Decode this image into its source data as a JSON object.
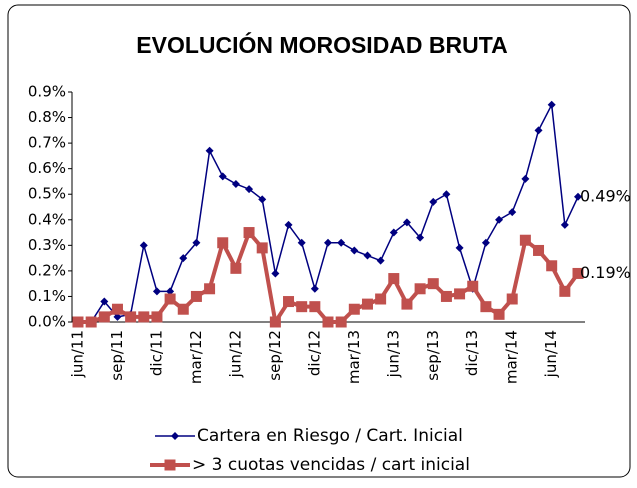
{
  "chart_data": {
    "type": "line",
    "title": "EVOLUCIÓN MOROSIDAD BRUTA",
    "categories": [
      "jun/11",
      null,
      null,
      "sep/11",
      null,
      null,
      "dic/11",
      null,
      null,
      "mar/12",
      null,
      null,
      "jun/12",
      null,
      null,
      "sep/12",
      null,
      null,
      "dic/12",
      null,
      null,
      "mar/13",
      null,
      null,
      "jun/13",
      null,
      null,
      "sep/13",
      null,
      null,
      "dic/13",
      null,
      null,
      "mar/14",
      null,
      null,
      "jun/14",
      null,
      null
    ],
    "series": [
      {
        "name": "Cartera en Riesgo / Cart. Inicial",
        "color": "#000080",
        "values": [
          0.0,
          0.0,
          0.08,
          0.02,
          0.03,
          0.3,
          0.12,
          0.12,
          0.25,
          0.31,
          0.67,
          0.57,
          0.54,
          0.52,
          0.48,
          0.19,
          0.38,
          0.31,
          0.13,
          0.31,
          0.31,
          0.28,
          0.26,
          0.24,
          0.35,
          0.39,
          0.33,
          0.47,
          0.5,
          0.29,
          0.13,
          0.31,
          0.4,
          0.43,
          0.56,
          0.75,
          0.85,
          0.38,
          0.49
        ],
        "value_labels": [
          null,
          null,
          null,
          null,
          null,
          null,
          null,
          null,
          null,
          null,
          null,
          null,
          null,
          null,
          null,
          null,
          null,
          null,
          null,
          null,
          null,
          null,
          null,
          null,
          null,
          null,
          null,
          null,
          null,
          null,
          null,
          null,
          null,
          null,
          null,
          null,
          null,
          null,
          "0.49%"
        ]
      },
      {
        "name": "> 3 cuotas vencidas / cart inicial",
        "color": "#c0504d",
        "values": [
          0.0,
          0.0,
          0.02,
          0.05,
          0.02,
          0.02,
          0.02,
          0.09,
          0.05,
          0.1,
          0.13,
          0.31,
          0.21,
          0.35,
          0.29,
          0.0,
          0.08,
          0.06,
          0.06,
          0.0,
          0.0,
          0.05,
          0.07,
          0.09,
          0.17,
          0.07,
          0.13,
          0.15,
          0.1,
          0.11,
          0.14,
          0.06,
          0.03,
          0.09,
          0.32,
          0.28,
          0.22,
          0.12,
          0.19
        ],
        "value_labels": [
          null,
          null,
          null,
          null,
          null,
          null,
          null,
          null,
          null,
          null,
          null,
          null,
          null,
          null,
          null,
          null,
          null,
          null,
          null,
          null,
          null,
          null,
          null,
          null,
          null,
          null,
          null,
          null,
          null,
          null,
          null,
          null,
          null,
          null,
          null,
          null,
          null,
          null,
          "0.19%"
        ]
      }
    ],
    "ylim": [
      0,
      0.9
    ],
    "yticks": [
      {
        "value": 0,
        "label": "0.0%"
      },
      {
        "value": 0.1,
        "label": "0.1%"
      },
      {
        "value": 0.2,
        "label": "0.2%"
      },
      {
        "value": 0.3,
        "label": "0.3%"
      },
      {
        "value": 0.4,
        "label": "0.4%"
      },
      {
        "value": 0.5,
        "label": "0.5%"
      },
      {
        "value": 0.6,
        "label": "0.6%"
      },
      {
        "value": 0.7,
        "label": "0.7%"
      },
      {
        "value": 0.8,
        "label": "0.8%"
      },
      {
        "value": 0.9,
        "label": "0.9%"
      }
    ],
    "grid": false
  }
}
